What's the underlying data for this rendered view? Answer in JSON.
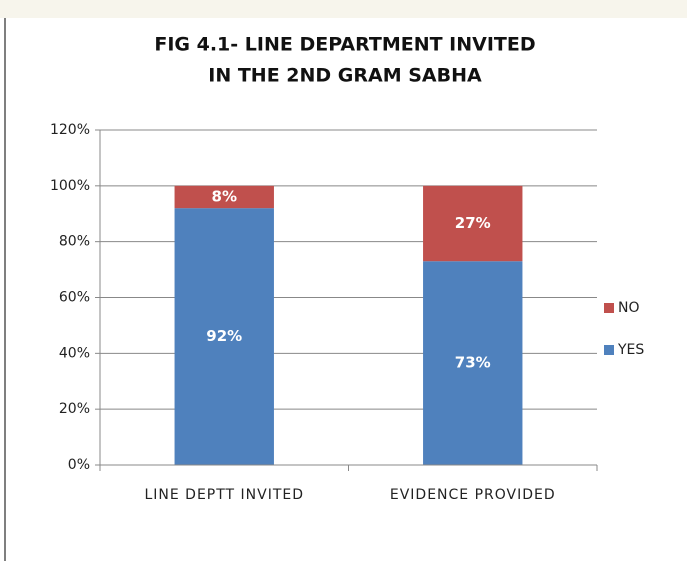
{
  "chart_data": {
    "type": "stacked_bar",
    "title": [
      "FIG 4.1- LINE DEPARTMENT INVITED",
      "IN THE 2ND GRAM SABHA"
    ],
    "categories": [
      "LINE DEPTT INVITED",
      "EVIDENCE PROVIDED"
    ],
    "series": [
      {
        "name": "YES",
        "color": "#4f81bd",
        "values": [
          92,
          73
        ],
        "value_labels": [
          "92%",
          "73%"
        ]
      },
      {
        "name": "NO",
        "color": "#c0504d",
        "values": [
          8,
          27
        ],
        "value_labels": [
          "8%",
          "27%"
        ]
      }
    ],
    "ylim": [
      0,
      120
    ],
    "yticks": [
      {
        "value": 0,
        "label": "0%"
      },
      {
        "value": 20,
        "label": "20%"
      },
      {
        "value": 40,
        "label": "40%"
      },
      {
        "value": 60,
        "label": "60%"
      },
      {
        "value": 80,
        "label": "80%"
      },
      {
        "value": 100,
        "label": "100%"
      },
      {
        "value": 120,
        "label": "120%"
      }
    ],
    "grid": true,
    "legend": "right"
  }
}
